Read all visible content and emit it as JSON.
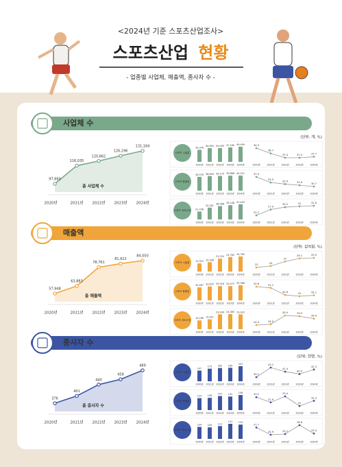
{
  "header": {
    "kicker": "<2024년 기준 스포츠산업조사>",
    "title": "스포츠산업",
    "title_accent": "현황",
    "subtitle": "- 업종별 사업체, 매출액, 종사자 수 -"
  },
  "sections": [
    {
      "title": "사업체 수",
      "unit": "(단위: 개, %)",
      "color": "#7aa88a",
      "years": [
        "2020년",
        "2021년",
        "2022년",
        "2023년",
        "2024년"
      ],
      "main": {
        "type": "line",
        "label": "총 사업체 수",
        "values": [
          97660,
          116035,
          120862,
          126196,
          131164
        ],
        "value_labels": [
          "97,660",
          "116,035",
          "120,862",
          "126,196",
          "131,164"
        ]
      },
      "subs": [
        {
          "label": "스포츠 시설업",
          "bars": [
            39376,
            44855,
            45095,
            47180,
            49490
          ],
          "bar_labels": [
            "39,376",
            "44,855",
            "45,095",
            "47,180",
            "49,490"
          ],
          "shares": [
            40.3,
            38.7,
            37.4,
            37.4,
            37.7
          ]
        },
        {
          "label": "스포츠 용품업",
          "bars": [
            36576,
            38839,
            39179,
            39868,
            40221
          ],
          "bar_labels": [
            "36,576",
            "38,839",
            "39,179",
            "39,868",
            "40,221"
          ],
          "shares": [
            37.4,
            33.5,
            32.4,
            31.6,
            30.7
          ]
        },
        {
          "label": "스포츠 서비스업",
          "bars": [
            21708,
            32341,
            36588,
            39148,
            41453
          ],
          "bar_labels": [
            "21,708",
            "32,341",
            "36,588",
            "39,148",
            "41,453"
          ],
          "shares": [
            22.2,
            27.9,
            30.2,
            31.0,
            31.6
          ]
        }
      ]
    },
    {
      "title": "매출액",
      "unit": "(단위: 십억원, %)",
      "color": "#f0a53a",
      "years": [
        "2020년",
        "2021년",
        "2022년",
        "2023년",
        "2024년"
      ],
      "main": {
        "type": "line",
        "label": "총 매출액",
        "values": [
          57948,
          63883,
          78761,
          81622,
          84050
        ],
        "value_labels": [
          "57,948",
          "63,883",
          "78,761",
          "81,622",
          "84,050"
        ]
      },
      "subs": [
        {
          "label": "스포츠 시설업",
          "bars": [
            13315,
            15338,
            21224,
            23765,
            24760
          ],
          "bar_labels": [
            "13,315",
            "15,338",
            "21,224",
            "23,765",
            "24,760"
          ],
          "shares": [
            23.0,
            24.0,
            27.0,
            29.1,
            29.5
          ]
        },
        {
          "label": "스포츠 용품업",
          "bars": [
            30467,
            32625,
            33518,
            33472,
            35368
          ],
          "bar_labels": [
            "30,467",
            "32,625",
            "33,518",
            "33,472",
            "35,368"
          ],
          "shares": [
            52.6,
            51.1,
            42.6,
            41.0,
            42.1
          ]
        },
        {
          "label": "스포츠 서비스업",
          "bars": [
            14166,
            15921,
            23930,
            24385,
            23922
          ],
          "bar_labels": [
            "14,166",
            "15,921",
            "23,930",
            "24,385",
            "23,922"
          ],
          "shares": [
            24.4,
            24.9,
            30.4,
            29.9,
            28.4
          ]
        }
      ]
    },
    {
      "title": "종사자 수",
      "unit": "(단위: 천명, %)",
      "color": "#3b55a3",
      "years": [
        "2020년",
        "2021년",
        "2022년",
        "2023년",
        "2024년"
      ],
      "main": {
        "type": "line",
        "label": "총 종사자 수",
        "values": [
          376,
          401,
          440,
          458,
          489
        ]
      },
      "subs": [
        {
          "label": "스포츠 시설업",
          "bars": [
            147,
            173,
            182,
            185,
            207
          ],
          "shares": [
            39.1,
            43.1,
            41.4,
            40.4,
            42.3
          ]
        },
        {
          "label": "스포츠 용품업",
          "bars": [
            125,
            128,
            147,
            142,
            158
          ],
          "shares": [
            33.2,
            31.9,
            33.4,
            31.0,
            32.3
          ]
        },
        {
          "label": "스포츠 서비스업",
          "bars": [
            104,
            100,
            111,
            131,
            124
          ],
          "shares": [
            27.7,
            24.9,
            25.2,
            28.6,
            25.4
          ]
        }
      ]
    }
  ]
}
